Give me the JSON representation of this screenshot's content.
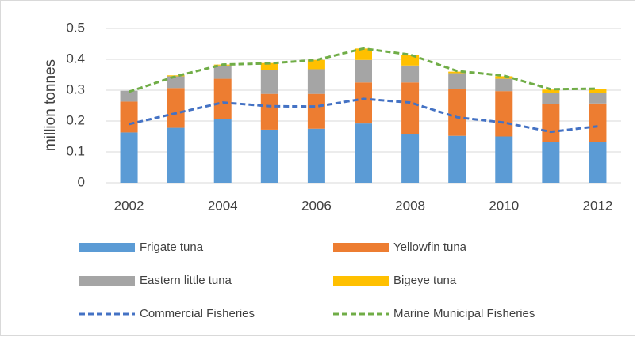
{
  "chart_data": {
    "type": "stacked-bar-line",
    "y_label": "million tonnes",
    "categories": [
      "2002",
      null,
      "2004",
      null,
      "2006",
      null,
      "2008",
      null,
      "2010",
      null,
      "2012"
    ],
    "ylim": [
      0,
      0.5
    ],
    "yticks": [
      0,
      0.1,
      0.2,
      0.3,
      0.4,
      0.5
    ],
    "grid": true,
    "series": [
      {
        "name": "Frigate tuna",
        "color": "#5b9bd5",
        "kind": "bar",
        "values": [
          0.163,
          0.178,
          0.207,
          0.172,
          0.175,
          0.192,
          0.157,
          0.152,
          0.15,
          0.132,
          0.132
        ]
      },
      {
        "name": "Yellowfin tuna",
        "color": "#ed7d31",
        "kind": "bar",
        "values": [
          0.1,
          0.129,
          0.13,
          0.116,
          0.113,
          0.133,
          0.168,
          0.153,
          0.147,
          0.123,
          0.125
        ]
      },
      {
        "name": "Eastern little tuna",
        "color": "#a5a5a5",
        "kind": "bar",
        "values": [
          0.035,
          0.038,
          0.043,
          0.077,
          0.08,
          0.073,
          0.055,
          0.05,
          0.04,
          0.035,
          0.033
        ]
      },
      {
        "name": "Bigeye tuna",
        "color": "#ffc000",
        "kind": "bar",
        "values": [
          0,
          0.003,
          0.003,
          0.023,
          0.03,
          0.037,
          0.035,
          0.005,
          0.008,
          0.012,
          0.015
        ]
      },
      {
        "name": "Commercial Fisheries",
        "color": "#4472c4",
        "kind": "line",
        "dashed": true,
        "values": [
          0.19,
          0.225,
          0.26,
          0.248,
          0.247,
          0.272,
          0.26,
          0.212,
          0.195,
          0.165,
          0.183
        ]
      },
      {
        "name": "Marine Municipal Fisheries",
        "color": "#70ad47",
        "kind": "line",
        "dashed": true,
        "values": [
          0.295,
          0.345,
          0.383,
          0.387,
          0.398,
          0.435,
          0.415,
          0.362,
          0.347,
          0.303,
          0.305
        ]
      }
    ]
  }
}
